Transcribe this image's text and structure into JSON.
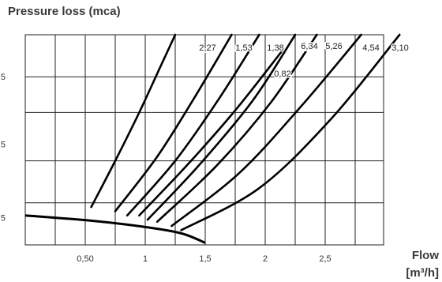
{
  "chart_data": {
    "type": "line",
    "title": "Pressure loss (mca)",
    "xlabel": [
      "Flow",
      "[m³/h]"
    ],
    "ylabel": "",
    "xlim": [
      0,
      3.1
    ],
    "x_tick_labels": [
      {
        "value": 0.5,
        "label": "0,50"
      },
      {
        "value": 1,
        "label": "1"
      },
      {
        "value": 1.5,
        "label": "1,5"
      },
      {
        "value": 2,
        "label": "2"
      },
      {
        "value": 2.5,
        "label": "2,5"
      }
    ],
    "y_tick_labels": [
      {
        "value": 0.13,
        "label": "5"
      },
      {
        "value": 0.48,
        "label": "5"
      },
      {
        "value": 0.8,
        "label": "5"
      }
    ],
    "grid": true,
    "series": [
      {
        "name": "2,27",
        "points": [
          [
            0.55,
            0.18
          ],
          [
            0.75,
            0.4
          ],
          [
            0.95,
            0.63
          ],
          [
            1.12,
            0.84
          ],
          [
            1.25,
            1.0
          ]
        ]
      },
      {
        "name": "1,53",
        "points": [
          [
            0.75,
            0.16
          ],
          [
            1.1,
            0.42
          ],
          [
            1.42,
            0.71
          ],
          [
            1.72,
            1.0
          ]
        ]
      },
      {
        "name": "1,38",
        "points": [
          [
            0.85,
            0.14
          ],
          [
            1.25,
            0.4
          ],
          [
            1.62,
            0.7
          ],
          [
            1.95,
            1.0
          ]
        ]
      },
      {
        "name": "0,82",
        "points": [
          [
            0.95,
            0.14
          ],
          [
            1.35,
            0.38
          ],
          [
            1.75,
            0.64
          ],
          [
            2.15,
            0.93
          ]
        ]
      },
      {
        "name": "6,34",
        "points": [
          [
            1.02,
            0.12
          ],
          [
            1.45,
            0.38
          ],
          [
            1.9,
            0.69
          ],
          [
            2.25,
            1.0
          ]
        ]
      },
      {
        "name": "5,26",
        "points": [
          [
            1.1,
            0.11
          ],
          [
            1.6,
            0.38
          ],
          [
            2.05,
            0.68
          ],
          [
            2.43,
            1.0
          ]
        ]
      },
      {
        "name": "4,54",
        "points": [
          [
            1.22,
            0.09
          ],
          [
            1.78,
            0.34
          ],
          [
            2.3,
            0.66
          ],
          [
            2.8,
            1.0
          ]
        ]
      },
      {
        "name": "3,10",
        "points": [
          [
            1.3,
            0.07
          ],
          [
            1.95,
            0.27
          ],
          [
            2.55,
            0.6
          ],
          [
            3.12,
            1.0
          ]
        ]
      }
    ],
    "envelope": [
      [
        0,
        0.14
      ],
      [
        0.55,
        0.115
      ],
      [
        1.0,
        0.085
      ],
      [
        1.3,
        0.055
      ],
      [
        1.5,
        0.01
      ]
    ]
  }
}
